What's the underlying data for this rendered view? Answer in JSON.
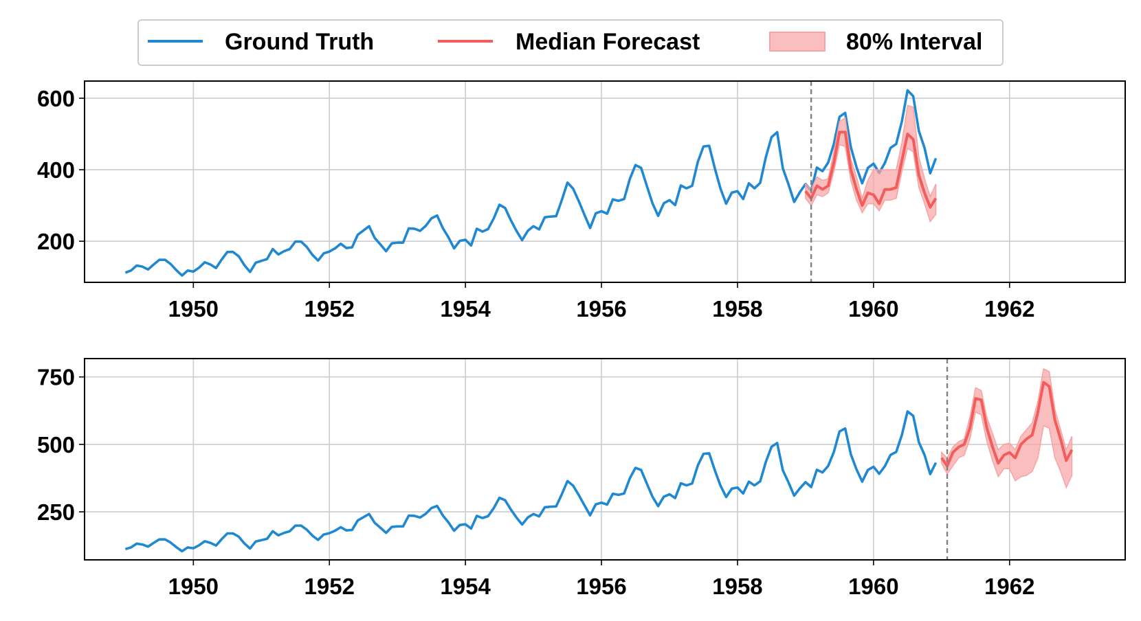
{
  "legend": {
    "ground_truth": "Ground Truth",
    "median": "Median Forecast",
    "interval": "80% Interval",
    "placement": "top-center"
  },
  "colors": {
    "ground_truth": "#1f88d0",
    "median": "#f45b5b",
    "interval": "#f8a3a3",
    "cutoff": "#808080",
    "grid": "#cccccc"
  },
  "chart_data": [
    {
      "type": "line",
      "title": "",
      "xlabel": "",
      "ylabel": "",
      "xlim": [
        1948.4,
        1963.7
      ],
      "ylim": [
        85,
        648
      ],
      "x_ticks": [
        1950,
        1952,
        1954,
        1956,
        1958,
        1960,
        1962
      ],
      "y_ticks": [
        200,
        400,
        600
      ],
      "grid": true,
      "cutoff_x": 1959.083,
      "ground_truth": {
        "name": "Ground Truth",
        "x_start": 1949.0,
        "x_step": 0.0833333,
        "values": [
          112,
          118,
          132,
          129,
          121,
          135,
          148,
          148,
          136,
          119,
          104,
          118,
          115,
          126,
          141,
          135,
          125,
          149,
          170,
          170,
          158,
          133,
          114,
          140,
          145,
          150,
          178,
          163,
          172,
          178,
          199,
          199,
          184,
          162,
          146,
          166,
          171,
          180,
          193,
          181,
          183,
          218,
          230,
          242,
          209,
          191,
          172,
          194,
          196,
          196,
          236,
          235,
          229,
          243,
          264,
          272,
          237,
          211,
          180,
          201,
          204,
          188,
          235,
          227,
          234,
          264,
          302,
          293,
          259,
          229,
          203,
          229,
          242,
          233,
          267,
          269,
          270,
          315,
          364,
          347,
          312,
          274,
          237,
          278,
          284,
          277,
          317,
          313,
          318,
          374,
          413,
          405,
          355,
          306,
          271,
          306,
          315,
          301,
          356,
          348,
          355,
          422,
          465,
          467,
          404,
          347,
          305,
          336,
          340,
          318,
          362,
          348,
          363,
          435,
          491,
          505,
          404,
          359,
          310,
          337,
          360,
          342,
          406,
          396,
          420,
          472,
          548,
          559,
          463,
          407,
          362,
          405,
          417,
          391,
          419,
          461,
          472,
          535,
          622,
          606,
          508,
          461,
          390,
          432
        ]
      },
      "forecast": {
        "x_start": 1959.0,
        "x_step": 0.0833333,
        "median": [
          340,
          320,
          355,
          345,
          355,
          420,
          505,
          505,
          400,
          345,
          300,
          335,
          330,
          305,
          345,
          345,
          350,
          425,
          500,
          485,
          385,
          335,
          295,
          320
        ],
        "lower": [
          320,
          300,
          330,
          325,
          335,
          395,
          470,
          465,
          370,
          315,
          280,
          305,
          305,
          285,
          315,
          315,
          320,
          395,
          460,
          450,
          350,
          305,
          255,
          275
        ],
        "upper": [
          360,
          345,
          380,
          370,
          375,
          450,
          535,
          545,
          430,
          380,
          320,
          370,
          400,
          400,
          400,
          400,
          400,
          475,
          580,
          575,
          435,
          375,
          325,
          360
        ]
      }
    },
    {
      "type": "line",
      "title": "",
      "xlabel": "",
      "ylabel": "",
      "xlim": [
        1948.4,
        1963.7
      ],
      "ylim": [
        72,
        818
      ],
      "x_ticks": [
        1950,
        1952,
        1954,
        1956,
        1958,
        1960,
        1962
      ],
      "y_ticks": [
        250,
        500,
        750
      ],
      "grid": true,
      "cutoff_x": 1961.083,
      "ground_truth": {
        "name": "Ground Truth",
        "x_start": 1949.0,
        "x_step": 0.0833333,
        "values": [
          112,
          118,
          132,
          129,
          121,
          135,
          148,
          148,
          136,
          119,
          104,
          118,
          115,
          126,
          141,
          135,
          125,
          149,
          170,
          170,
          158,
          133,
          114,
          140,
          145,
          150,
          178,
          163,
          172,
          178,
          199,
          199,
          184,
          162,
          146,
          166,
          171,
          180,
          193,
          181,
          183,
          218,
          230,
          242,
          209,
          191,
          172,
          194,
          196,
          196,
          236,
          235,
          229,
          243,
          264,
          272,
          237,
          211,
          180,
          201,
          204,
          188,
          235,
          227,
          234,
          264,
          302,
          293,
          259,
          229,
          203,
          229,
          242,
          233,
          267,
          269,
          270,
          315,
          364,
          347,
          312,
          274,
          237,
          278,
          284,
          277,
          317,
          313,
          318,
          374,
          413,
          405,
          355,
          306,
          271,
          306,
          315,
          301,
          356,
          348,
          355,
          422,
          465,
          467,
          404,
          347,
          305,
          336,
          340,
          318,
          362,
          348,
          363,
          435,
          491,
          505,
          404,
          359,
          310,
          337,
          360,
          342,
          406,
          396,
          420,
          472,
          548,
          559,
          463,
          407,
          362,
          405,
          417,
          391,
          419,
          461,
          472,
          535,
          622,
          606,
          508,
          461,
          390,
          432
        ]
      },
      "forecast": {
        "x_start": 1961.0,
        "x_step": 0.0833333,
        "median": [
          450,
          420,
          470,
          490,
          500,
          560,
          670,
          665,
          560,
          490,
          430,
          460,
          470,
          450,
          500,
          520,
          535,
          620,
          730,
          715,
          590,
          520,
          440,
          480
        ],
        "lower": [
          430,
          390,
          420,
          450,
          460,
          520,
          620,
          610,
          510,
          440,
          380,
          410,
          410,
          365,
          380,
          385,
          400,
          450,
          570,
          560,
          450,
          400,
          340,
          385
        ],
        "upper": [
          470,
          450,
          490,
          510,
          520,
          600,
          710,
          700,
          600,
          540,
          480,
          500,
          505,
          480,
          530,
          555,
          580,
          660,
          780,
          770,
          630,
          555,
          480,
          530
        ]
      }
    }
  ]
}
